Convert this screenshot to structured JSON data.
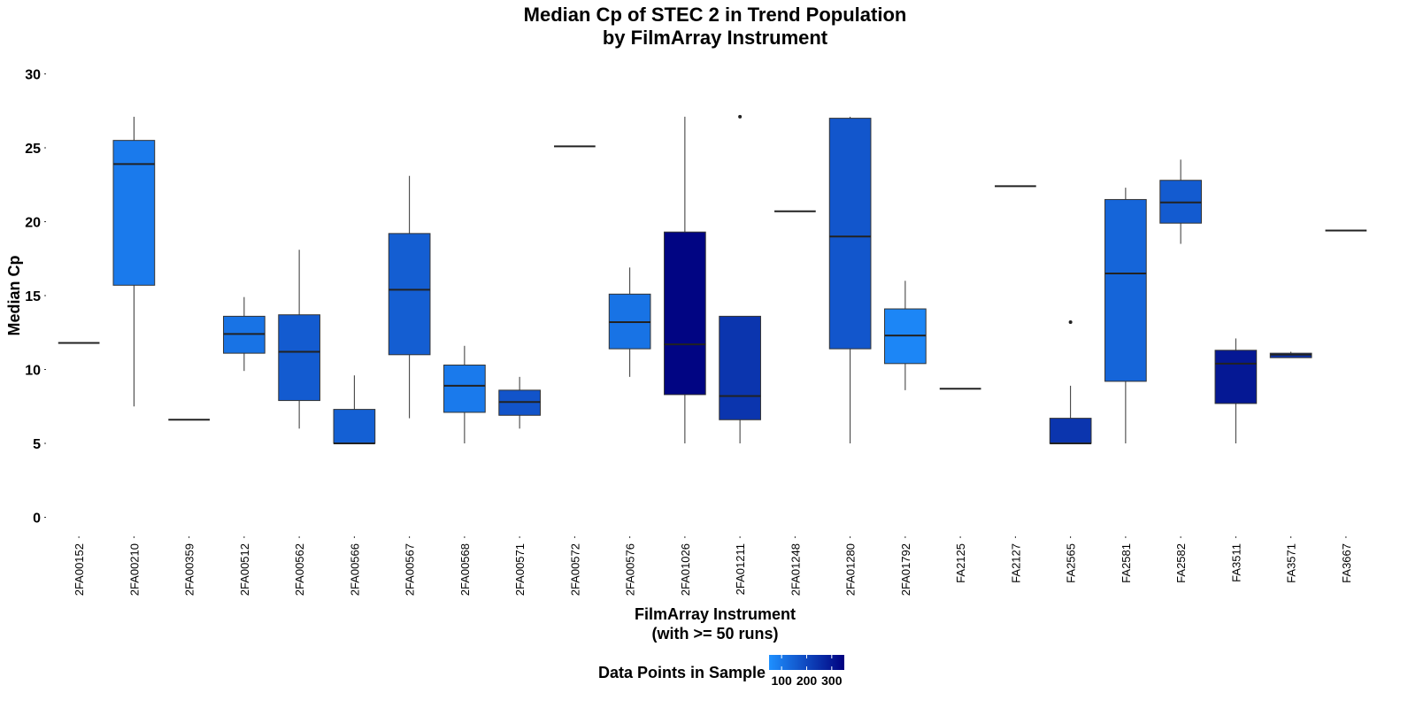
{
  "chart_data": {
    "type": "boxplot",
    "title": "Median Cp of STEC 2 in Trend Population",
    "subtitle": "by FilmArray Instrument",
    "xlabel": "FilmArray Instrument",
    "xlabel_sub": "(with >= 50 runs)",
    "ylabel": "Median Cp",
    "ylim": [
      0,
      30
    ],
    "yticks": [
      "0",
      "5",
      "10",
      "15",
      "20",
      "25",
      "30"
    ],
    "grid": false,
    "legend": {
      "title": "Data Points in Sample",
      "placement": "bottom",
      "tick_labels": [
        "100",
        "200",
        "300"
      ],
      "color_low": "#1E90FF",
      "color_high": "#00007F"
    },
    "boxes": [
      {
        "instrument": "2FA00152",
        "whisker_low": 11.8,
        "q1": 11.8,
        "median": 11.8,
        "q3": 11.8,
        "whisker_high": 11.8,
        "outliers": [],
        "n": 90
      },
      {
        "instrument": "2FA00210",
        "whisker_low": 7.5,
        "q1": 15.7,
        "median": 23.9,
        "q3": 25.5,
        "whisker_high": 27.1,
        "outliers": [],
        "n": 95
      },
      {
        "instrument": "2FA00359",
        "whisker_low": 6.6,
        "q1": 6.6,
        "median": 6.6,
        "q3": 6.6,
        "whisker_high": 6.6,
        "outliers": [],
        "n": 90
      },
      {
        "instrument": "2FA00512",
        "whisker_low": 9.9,
        "q1": 11.1,
        "median": 12.4,
        "q3": 13.6,
        "whisker_high": 14.9,
        "outliers": [],
        "n": 110
      },
      {
        "instrument": "2FA00562",
        "whisker_low": 6.0,
        "q1": 7.9,
        "median": 11.2,
        "q3": 13.7,
        "whisker_high": 18.1,
        "outliers": [],
        "n": 160
      },
      {
        "instrument": "2FA00566",
        "whisker_low": 5.0,
        "q1": 5.0,
        "median": 5.0,
        "q3": 7.3,
        "whisker_high": 9.6,
        "outliers": [],
        "n": 150
      },
      {
        "instrument": "2FA00567",
        "whisker_low": 6.7,
        "q1": 11.0,
        "median": 15.4,
        "q3": 19.2,
        "whisker_high": 23.1,
        "outliers": [],
        "n": 155
      },
      {
        "instrument": "2FA00568",
        "whisker_low": 5.0,
        "q1": 7.1,
        "median": 8.9,
        "q3": 10.3,
        "whisker_high": 11.6,
        "outliers": [],
        "n": 95
      },
      {
        "instrument": "2FA00571",
        "whisker_low": 6.0,
        "q1": 6.9,
        "median": 7.8,
        "q3": 8.6,
        "whisker_high": 9.5,
        "outliers": [],
        "n": 175
      },
      {
        "instrument": "2FA00572",
        "whisker_low": 25.1,
        "q1": 25.1,
        "median": 25.1,
        "q3": 25.1,
        "whisker_high": 25.1,
        "outliers": [],
        "n": 90
      },
      {
        "instrument": "2FA00576",
        "whisker_low": 9.5,
        "q1": 11.4,
        "median": 13.2,
        "q3": 15.1,
        "whisker_high": 16.9,
        "outliers": [],
        "n": 110
      },
      {
        "instrument": "2FA01026",
        "whisker_low": 5.0,
        "q1": 8.3,
        "median": 11.7,
        "q3": 19.3,
        "whisker_high": 27.1,
        "outliers": [],
        "n": 340
      },
      {
        "instrument": "2FA01211",
        "whisker_low": 5.0,
        "q1": 6.6,
        "median": 8.2,
        "q3": 13.6,
        "whisker_high": 13.6,
        "outliers": [
          27.1
        ],
        "n": 240
      },
      {
        "instrument": "2FA01248",
        "whisker_low": 20.7,
        "q1": 20.7,
        "median": 20.7,
        "q3": 20.7,
        "whisker_high": 20.7,
        "outliers": [],
        "n": 95
      },
      {
        "instrument": "2FA01280",
        "whisker_low": 5.0,
        "q1": 11.4,
        "median": 19.0,
        "q3": 27.0,
        "whisker_high": 27.1,
        "outliers": [],
        "n": 170
      },
      {
        "instrument": "2FA01792",
        "whisker_low": 8.6,
        "q1": 10.4,
        "median": 12.3,
        "q3": 14.1,
        "whisker_high": 16.0,
        "outliers": [],
        "n": 70
      },
      {
        "instrument": "FA2125",
        "whisker_low": 8.7,
        "q1": 8.7,
        "median": 8.7,
        "q3": 8.7,
        "whisker_high": 8.7,
        "outliers": [],
        "n": 90
      },
      {
        "instrument": "FA2127",
        "whisker_low": 22.4,
        "q1": 22.4,
        "median": 22.4,
        "q3": 22.4,
        "whisker_high": 22.4,
        "outliers": [],
        "n": 90
      },
      {
        "instrument": "FA2565",
        "whisker_low": 5.0,
        "q1": 5.0,
        "median": 5.0,
        "q3": 6.7,
        "whisker_high": 8.9,
        "outliers": [
          13.2
        ],
        "n": 240
      },
      {
        "instrument": "FA2581",
        "whisker_low": 5.0,
        "q1": 9.2,
        "median": 16.5,
        "q3": 21.5,
        "whisker_high": 22.3,
        "outliers": [],
        "n": 140
      },
      {
        "instrument": "FA2582",
        "whisker_low": 18.5,
        "q1": 19.9,
        "median": 21.3,
        "q3": 22.8,
        "whisker_high": 24.2,
        "outliers": [],
        "n": 160
      },
      {
        "instrument": "FA3511",
        "whisker_low": 5.0,
        "q1": 7.7,
        "median": 10.4,
        "q3": 11.3,
        "whisker_high": 12.1,
        "outliers": [],
        "n": 300
      },
      {
        "instrument": "FA3571",
        "whisker_low": 10.8,
        "q1": 10.8,
        "median": 11.0,
        "q3": 11.1,
        "whisker_high": 11.2,
        "outliers": [],
        "n": 250
      },
      {
        "instrument": "FA3667",
        "whisker_low": 19.4,
        "q1": 19.4,
        "median": 19.4,
        "q3": 19.4,
        "whisker_high": 19.4,
        "outliers": [],
        "n": 90
      }
    ]
  }
}
